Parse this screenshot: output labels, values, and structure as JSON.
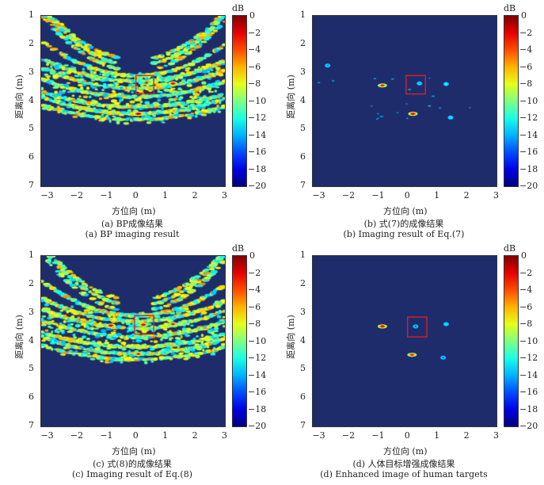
{
  "colors": {
    "background_level": "#1f2c6c",
    "roi_box": "#e02020"
  },
  "chart_data": [
    {
      "type": "heatmap",
      "id": "a",
      "xlabel": "方位向 (m)",
      "ylabel": "距离向 (m)",
      "caption_cn": "(a) BP成像结果",
      "caption_en": "(a) BP imaging result",
      "xlim": [
        -3.2,
        3
      ],
      "ylim": [
        1,
        7
      ],
      "xticks": [
        "-3",
        "-2",
        "-1",
        "0",
        "1",
        "2",
        "3"
      ],
      "yticks": [
        "1",
        "2",
        "3",
        "4",
        "5",
        "6",
        "7"
      ],
      "colorbar": {
        "label": "dB",
        "range": [
          -20,
          0
        ],
        "ticks": [
          "0",
          "-2",
          "-4",
          "-6",
          "-8",
          "-10",
          "-12",
          "-14",
          "-16",
          "-18",
          "-20"
        ]
      },
      "clutter": "strong",
      "roi_box": {
        "x": [
          0,
          0.6
        ],
        "y": [
          3.1,
          3.75
        ]
      },
      "peaks": [
        {
          "x": 0.3,
          "y": 3.45,
          "db": -4
        },
        {
          "x": 1.25,
          "y": 3.38,
          "db": -2
        },
        {
          "x": 0.08,
          "y": 4.45,
          "db": -1
        },
        {
          "x": -2.5,
          "y": 3.02,
          "db": -6
        },
        {
          "x": -0.85,
          "y": 3.45,
          "db": -7
        }
      ]
    },
    {
      "type": "heatmap",
      "id": "b",
      "xlabel": "方位向 (m)",
      "ylabel": "距离向 (m)",
      "caption_cn": "(b) 式(7)的成像结果",
      "caption_en": "(b) Imaging result of Eq.(7)",
      "xlim": [
        -3.2,
        3
      ],
      "ylim": [
        1,
        7
      ],
      "xticks": [
        "-3",
        "-2",
        "-1",
        "0",
        "1",
        "2",
        "3"
      ],
      "yticks": [
        "1",
        "2",
        "3",
        "4",
        "5",
        "6",
        "7"
      ],
      "colorbar": {
        "label": "dB",
        "range": [
          -20,
          0
        ],
        "ticks": [
          "0",
          "-2",
          "-4",
          "-6",
          "-8",
          "-10",
          "-12",
          "-14",
          "-16",
          "-18",
          "-20"
        ]
      },
      "clutter": "weak",
      "roi_box": {
        "x": [
          -0.05,
          0.6
        ],
        "y": [
          3.1,
          3.75
        ]
      },
      "peaks": [
        {
          "x": -0.85,
          "y": 3.45,
          "db": -3
        },
        {
          "x": 0.18,
          "y": 4.45,
          "db": -2
        },
        {
          "x": 1.3,
          "y": 3.4,
          "db": -12
        },
        {
          "x": 1.45,
          "y": 4.58,
          "db": -13
        },
        {
          "x": 0.4,
          "y": 3.38,
          "db": -14
        },
        {
          "x": -2.7,
          "y": 2.75,
          "db": -15
        }
      ]
    },
    {
      "type": "heatmap",
      "id": "c",
      "xlabel": "方位向 (m)",
      "ylabel": "距离向 (m)",
      "caption_cn": "(c) 式(8)的成像结果",
      "caption_en": "(c) Imaging result of Eq.(8)",
      "xlim": [
        -3.2,
        3
      ],
      "ylim": [
        1,
        7
      ],
      "xticks": [
        "-3",
        "-2",
        "-1",
        "0",
        "1",
        "2",
        "3"
      ],
      "yticks": [
        "1",
        "2",
        "3",
        "4",
        "5",
        "6",
        "7"
      ],
      "colorbar": {
        "label": "dB",
        "range": [
          -20,
          0
        ],
        "ticks": [
          "0",
          "-2",
          "-4",
          "-6",
          "-8",
          "-10",
          "-12",
          "-14",
          "-16",
          "-18",
          "-20"
        ]
      },
      "clutter": "strong",
      "roi_box": {
        "x": [
          -0.05,
          0.6
        ],
        "y": [
          3.1,
          3.75
        ]
      },
      "peaks": [
        {
          "x": 0.25,
          "y": 3.42,
          "db": -2
        },
        {
          "x": -0.85,
          "y": 3.45,
          "db": -2
        },
        {
          "x": 1.25,
          "y": 3.4,
          "db": -3
        },
        {
          "x": 0.08,
          "y": 4.45,
          "db": -3
        }
      ]
    },
    {
      "type": "heatmap",
      "id": "d",
      "xlabel": "方位向 (m)",
      "ylabel": "距离向 (m)",
      "caption_cn": "(d) 人体目标增强成像结果",
      "caption_en": "(d) Enhanced image of human targets",
      "xlim": [
        -3.2,
        3
      ],
      "ylim": [
        1,
        7
      ],
      "xticks": [
        "-3",
        "-2",
        "-1",
        "0",
        "1",
        "2",
        "3"
      ],
      "yticks": [
        "1",
        "2",
        "3",
        "4",
        "5",
        "6",
        "7"
      ],
      "colorbar": {
        "label": "dB",
        "range": [
          -20,
          0
        ],
        "ticks": [
          "0",
          "-2",
          "-4",
          "-6",
          "-8",
          "-10",
          "-12",
          "-14",
          "-16",
          "-18",
          "-20"
        ]
      },
      "clutter": "none",
      "roi_box": {
        "x": [
          0,
          0.65
        ],
        "y": [
          3.15,
          3.85
        ]
      },
      "peaks": [
        {
          "x": -0.85,
          "y": 3.48,
          "db": -2
        },
        {
          "x": 0.15,
          "y": 4.48,
          "db": -3
        },
        {
          "x": 1.3,
          "y": 3.4,
          "db": -13
        },
        {
          "x": 0.27,
          "y": 3.48,
          "db": -16
        },
        {
          "x": 1.2,
          "y": 4.58,
          "db": -16
        }
      ]
    }
  ]
}
